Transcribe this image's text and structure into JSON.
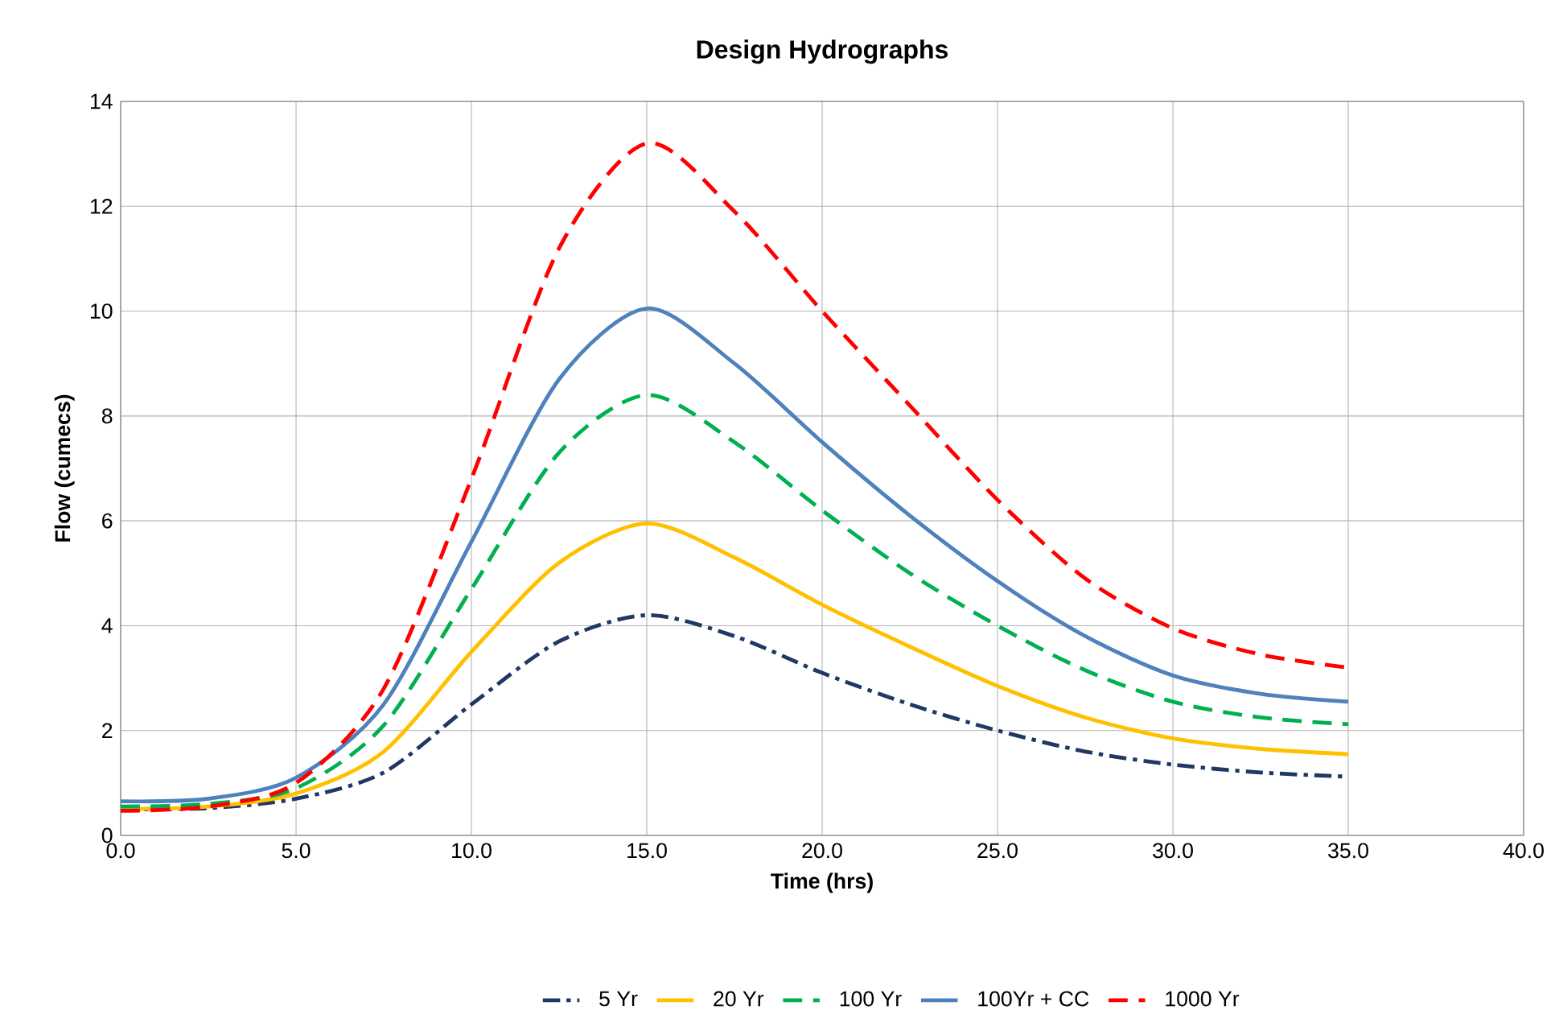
{
  "chart_data": {
    "type": "line",
    "title": "Design Hydrographs",
    "xlabel": "Time (hrs)",
    "ylabel": "Flow (cumecs)",
    "x": [
      0,
      2.5,
      5,
      7.5,
      10,
      12.5,
      15,
      17.5,
      20,
      22.5,
      25,
      27.5,
      30,
      32.5,
      35
    ],
    "series": [
      {
        "name": "5 Yr",
        "color": "#1f3864",
        "line_style": "dashdot",
        "values": [
          0.5,
          0.52,
          0.7,
          1.2,
          2.5,
          3.7,
          4.2,
          3.8,
          3.1,
          2.5,
          2.0,
          1.6,
          1.35,
          1.2,
          1.12
        ]
      },
      {
        "name": "20 Yr",
        "color": "#ffc000",
        "line_style": "solid",
        "values": [
          0.5,
          0.55,
          0.8,
          1.6,
          3.5,
          5.2,
          5.95,
          5.3,
          4.4,
          3.6,
          2.85,
          2.25,
          1.85,
          1.65,
          1.55
        ]
      },
      {
        "name": "100 Yr",
        "color": "#00b050",
        "line_style": "dashed",
        "values": [
          0.55,
          0.6,
          0.9,
          2.1,
          4.7,
          7.3,
          8.4,
          7.5,
          6.2,
          5.0,
          4.0,
          3.15,
          2.55,
          2.25,
          2.12
        ]
      },
      {
        "name": "100Yr + CC",
        "color": "#4f81bd",
        "line_style": "solid",
        "values": [
          0.65,
          0.7,
          1.1,
          2.5,
          5.6,
          8.7,
          10.05,
          9.0,
          7.5,
          6.1,
          4.85,
          3.8,
          3.05,
          2.7,
          2.55
        ]
      },
      {
        "name": "1000 Yr",
        "color": "#ff0000",
        "line_style": "dashed",
        "values": [
          0.47,
          0.55,
          1.0,
          2.8,
          6.8,
          11.2,
          13.2,
          11.9,
          10.0,
          8.2,
          6.4,
          4.9,
          3.95,
          3.45,
          3.2
        ]
      }
    ],
    "xlim": [
      0,
      40
    ],
    "ylim": [
      0,
      14
    ],
    "xticks": [
      {
        "value": 0,
        "label": "0.0"
      },
      {
        "value": 5,
        "label": "5.0"
      },
      {
        "value": 10,
        "label": "10.0"
      },
      {
        "value": 15,
        "label": "15.0"
      },
      {
        "value": 20,
        "label": "20.0"
      },
      {
        "value": 25,
        "label": "25.0"
      },
      {
        "value": 30,
        "label": "30.0"
      },
      {
        "value": 35,
        "label": "35.0"
      },
      {
        "value": 40,
        "label": "40.0"
      }
    ],
    "yticks": [
      0,
      2,
      4,
      6,
      8,
      10,
      12,
      14
    ],
    "grid": true,
    "legend": "bottom"
  }
}
